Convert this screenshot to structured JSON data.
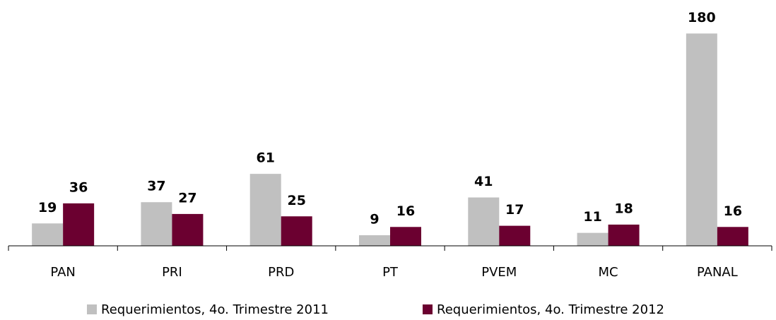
{
  "chart_data": {
    "type": "bar",
    "categories": [
      "PAN",
      "PRI",
      "PRD",
      "PT",
      "PVEM",
      "MC",
      "PANAL"
    ],
    "series": [
      {
        "name": "Requerimientos, 4o. Trimestre 2011",
        "color": "#c0c0c0",
        "values": [
          19,
          37,
          61,
          9,
          41,
          11,
          180
        ]
      },
      {
        "name": "Requerimientos, 4o. Trimestre 2012",
        "color": "#6b0030",
        "values": [
          36,
          27,
          25,
          16,
          17,
          18,
          16
        ]
      }
    ],
    "ylim": [
      0,
      200
    ],
    "legend": "bottom"
  }
}
